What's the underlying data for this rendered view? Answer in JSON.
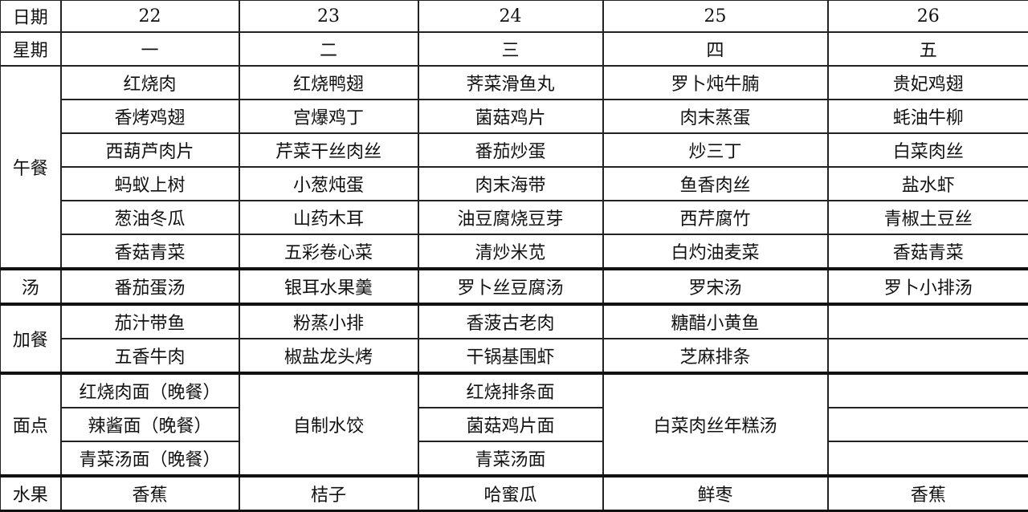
{
  "labels": {
    "date": "日期",
    "weekday": "星期",
    "lunch": "午餐",
    "soup": "汤",
    "snack": "加餐",
    "noodles": "面点",
    "fruit": "水果"
  },
  "dates": [
    "22",
    "23",
    "24",
    "25",
    "26"
  ],
  "weekdays": [
    "一",
    "二",
    "三",
    "四",
    "五"
  ],
  "lunch": [
    [
      "红烧肉",
      "红烧鸭翅",
      "荠菜滑鱼丸",
      "罗卜炖牛腩",
      "贵妃鸡翅"
    ],
    [
      "香烤鸡翅",
      "宫爆鸡丁",
      "菌菇鸡片",
      "肉末蒸蛋",
      "蚝油牛柳"
    ],
    [
      "西葫芦肉片",
      "芹菜干丝肉丝",
      "番茄炒蛋",
      "炒三丁",
      "白菜肉丝"
    ],
    [
      "蚂蚁上树",
      "小葱炖蛋",
      "肉末海带",
      "鱼香肉丝",
      "盐水虾"
    ],
    [
      "葱油冬瓜",
      "山药木耳",
      "油豆腐烧豆芽",
      "西芹腐竹",
      "青椒土豆丝"
    ],
    [
      "香菇青菜",
      "五彩卷心菜",
      "清炒米苋",
      "白灼油麦菜",
      "香菇青菜"
    ]
  ],
  "soup": [
    "番茄蛋汤",
    "银耳水果羹",
    "罗卜丝豆腐汤",
    "罗宋汤",
    "罗卜小排汤"
  ],
  "snack": [
    [
      "茄汁带鱼",
      "粉蒸小排",
      "香菠古老肉",
      "糖醋小黄鱼",
      ""
    ],
    [
      "五香牛肉",
      "椒盐龙头烤",
      "干锅基围虾",
      "芝麻排条",
      ""
    ]
  ],
  "noodles": {
    "mon": [
      "红烧肉面（晚餐）",
      "辣酱面（晚餐）",
      "青菜汤面（晚餐）"
    ],
    "tue": "自制水饺",
    "wed": [
      "红烧排条面",
      "菌菇鸡片面",
      "青菜汤面"
    ],
    "thu": "白菜肉丝年糕汤"
  },
  "fruit": [
    "香蕉",
    "桔子",
    "哈蜜瓜",
    "鲜枣",
    "香蕉"
  ]
}
